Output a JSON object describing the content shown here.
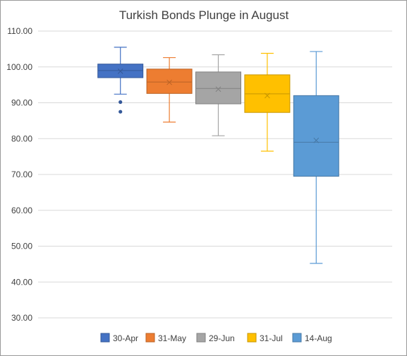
{
  "chart_data": {
    "type": "box",
    "title": "Turkish Bonds Plunge in August",
    "xlabel": "",
    "ylabel": "",
    "ylim": [
      30,
      110
    ],
    "y_ticks": [
      "30.00",
      "40.00",
      "50.00",
      "60.00",
      "70.00",
      "80.00",
      "90.00",
      "100.00",
      "110.00"
    ],
    "grid": true,
    "legend_position": "bottom",
    "series": [
      {
        "name": "30-Apr",
        "color": "#4472C4",
        "min": 92.4,
        "q1": 97.0,
        "median": 99.0,
        "q3": 100.8,
        "max": 105.5,
        "mean": 98.8,
        "outliers": [
          90.2,
          87.5
        ]
      },
      {
        "name": "31-May",
        "color": "#ED7D31",
        "min": 84.6,
        "q1": 92.6,
        "median": 95.8,
        "q3": 99.4,
        "max": 102.6,
        "mean": 95.7,
        "outliers": []
      },
      {
        "name": "29-Jun",
        "color": "#A5A5A5",
        "min": 80.8,
        "q1": 89.7,
        "median": 94.0,
        "q3": 98.6,
        "max": 103.4,
        "mean": 93.8,
        "outliers": []
      },
      {
        "name": "31-Jul",
        "color": "#FFC000",
        "min": 76.5,
        "q1": 87.3,
        "median": 92.5,
        "q3": 97.8,
        "max": 103.8,
        "mean": 92.0,
        "outliers": []
      },
      {
        "name": "14-Aug",
        "color": "#5B9BD5",
        "min": 45.2,
        "q1": 69.5,
        "median": 79.0,
        "q3": 92.0,
        "max": 104.3,
        "mean": 79.5,
        "outliers": []
      }
    ]
  }
}
